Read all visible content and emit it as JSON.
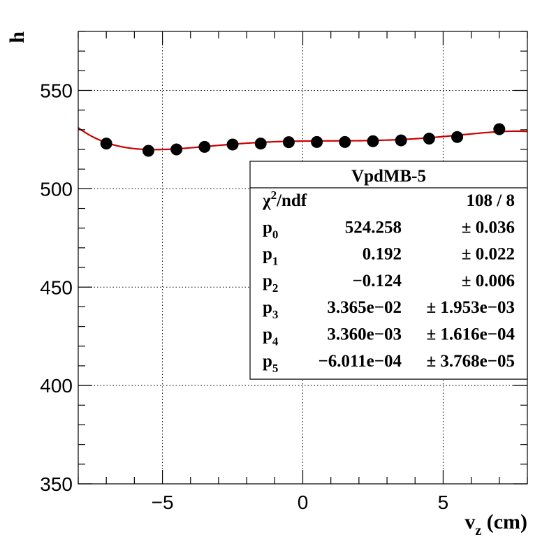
{
  "chart_data": {
    "type": "scatter",
    "title": "",
    "xlabel": "v",
    "xlabel_sub": "z",
    "xlabel_unit": " (cm)",
    "ylabel": "h",
    "xlim": [
      -8,
      8
    ],
    "ylim": [
      350,
      580
    ],
    "x_major_ticks": [
      -5,
      0,
      5
    ],
    "x_tick_labels": [
      "−5",
      "0",
      "5"
    ],
    "y_major_ticks": [
      350,
      400,
      450,
      500,
      550
    ],
    "y_tick_labels": [
      "350",
      "400",
      "450",
      "500",
      "550"
    ],
    "grid": true,
    "series": [
      {
        "kind": "points",
        "color": "#000000",
        "x": [
          -7,
          -5.5,
          -4.5,
          -3.5,
          -2.5,
          -1.5,
          -0.5,
          0.5,
          1.5,
          2.5,
          3.5,
          4.5,
          5.5,
          7
        ],
        "y": [
          523.0,
          519.3,
          520.0,
          521.3,
          522.5,
          523.0,
          523.7,
          523.8,
          523.8,
          524.2,
          524.6,
          525.5,
          526.3,
          530.3
        ]
      },
      {
        "kind": "fit",
        "color": "#cc0000",
        "function": "pol5",
        "params": [
          524.258,
          0.192,
          -0.124,
          0.03365,
          0.00336,
          -0.0006011
        ]
      }
    ],
    "stats_box": {
      "title": "VpdMB-5",
      "position": "right",
      "rows": [
        {
          "name": "χ",
          "sup": "2",
          "suffix": "/ndf",
          "sub": "",
          "value": "108 / 8",
          "error": ""
        },
        {
          "name": "p",
          "sup": "",
          "suffix": "",
          "sub": "0",
          "value": "524.258",
          "error": "± 0.036"
        },
        {
          "name": "p",
          "sup": "",
          "suffix": "",
          "sub": "1",
          "value": "0.192",
          "error": "± 0.022"
        },
        {
          "name": "p",
          "sup": "",
          "suffix": "",
          "sub": "2",
          "value": "−0.124",
          "error": "± 0.006"
        },
        {
          "name": "p",
          "sup": "",
          "suffix": "",
          "sub": "3",
          "value": "3.365e−02",
          "error": "± 1.953e−03"
        },
        {
          "name": "p",
          "sup": "",
          "suffix": "",
          "sub": "4",
          "value": "3.360e−03",
          "error": "± 1.616e−04"
        },
        {
          "name": "p",
          "sup": "",
          "suffix": "",
          "sub": "5",
          "value": "−6.011e−04",
          "error": "± 3.768e−05"
        }
      ]
    }
  }
}
